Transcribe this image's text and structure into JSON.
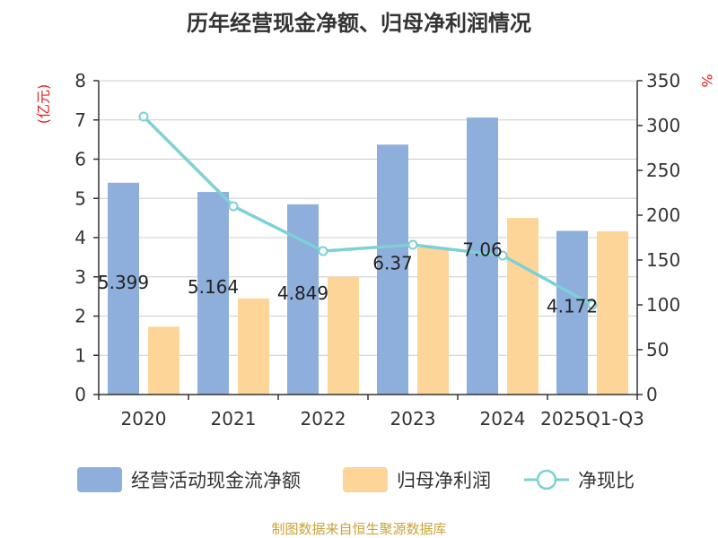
{
  "chart_data": {
    "type": "bar",
    "title": "历年经营现金净额、归母净利润情况",
    "categories": [
      "2020",
      "2021",
      "2022",
      "2023",
      "2024",
      "2025Q1-Q3"
    ],
    "y_left_unit": "(亿元)",
    "y_right_unit": "%",
    "y_left_range": [
      0,
      8
    ],
    "y_left_ticks": [
      "0",
      "1",
      "2",
      "3",
      "4",
      "5",
      "6",
      "7",
      "8"
    ],
    "y_right_range": [
      0,
      350
    ],
    "y_right_ticks": [
      "0",
      "50",
      "100",
      "150",
      "200",
      "250",
      "300",
      "350"
    ],
    "grid": true,
    "legend_position": "bottom",
    "series": [
      {
        "name": "经营活动现金流净额",
        "kind": "bar",
        "axis": "left",
        "color": "#8eaedb",
        "values": [
          5.399,
          5.164,
          4.849,
          6.37,
          7.06,
          4.172
        ],
        "labels": [
          "5.399",
          "5.164",
          "4.849",
          "6.37",
          "7.06",
          "4.172"
        ]
      },
      {
        "name": "归母净利润",
        "kind": "bar",
        "axis": "left",
        "color": "#fdd598",
        "values": [
          1.73,
          2.45,
          3.0,
          3.75,
          4.5,
          4.16
        ]
      },
      {
        "name": "净现比",
        "kind": "line",
        "axis": "right",
        "color": "#7dd0d6",
        "values": [
          310,
          210,
          160,
          167,
          155,
          100
        ]
      }
    ]
  },
  "source": {
    "text": "制图数据来自恒生聚源数据库",
    "color": "#c9a33a"
  },
  "unit_color": "#e02020"
}
